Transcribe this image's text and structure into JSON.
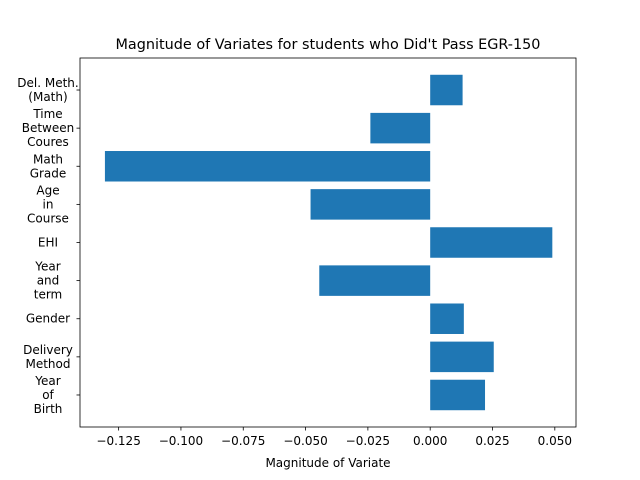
{
  "chart_data": {
    "type": "bar",
    "orientation": "horizontal",
    "title": "Magnitude of Variates for students who Did't Pass EGR-150",
    "xlabel": "Magnitude of Variate",
    "ylabel": "",
    "xlim": [
      -0.1405,
      0.0585
    ],
    "x_ticks": [
      -0.125,
      -0.1,
      -0.075,
      -0.05,
      -0.025,
      0.0,
      0.025,
      0.05
    ],
    "x_tick_labels": [
      "−0.125",
      "−0.100",
      "−0.075",
      "−0.050",
      "−0.025",
      "0.000",
      "0.025",
      "0.050"
    ],
    "categories": [
      [
        "Year",
        "of",
        "Birth"
      ],
      [
        "Delivery",
        "Method"
      ],
      [
        "Gender"
      ],
      [
        "Year",
        "and",
        "term"
      ],
      [
        "EHI"
      ],
      [
        "Age",
        "in",
        "Course"
      ],
      [
        "Math",
        "Grade"
      ],
      [
        "Time",
        "Between",
        "Coures"
      ],
      [
        "Del. Meth.",
        "(Math)"
      ]
    ],
    "values": [
      0.022,
      0.0255,
      0.0135,
      -0.0445,
      0.049,
      -0.048,
      -0.1305,
      -0.024,
      0.013
    ],
    "bar_color": "#1f77b4",
    "grid": false,
    "legend": "none"
  }
}
